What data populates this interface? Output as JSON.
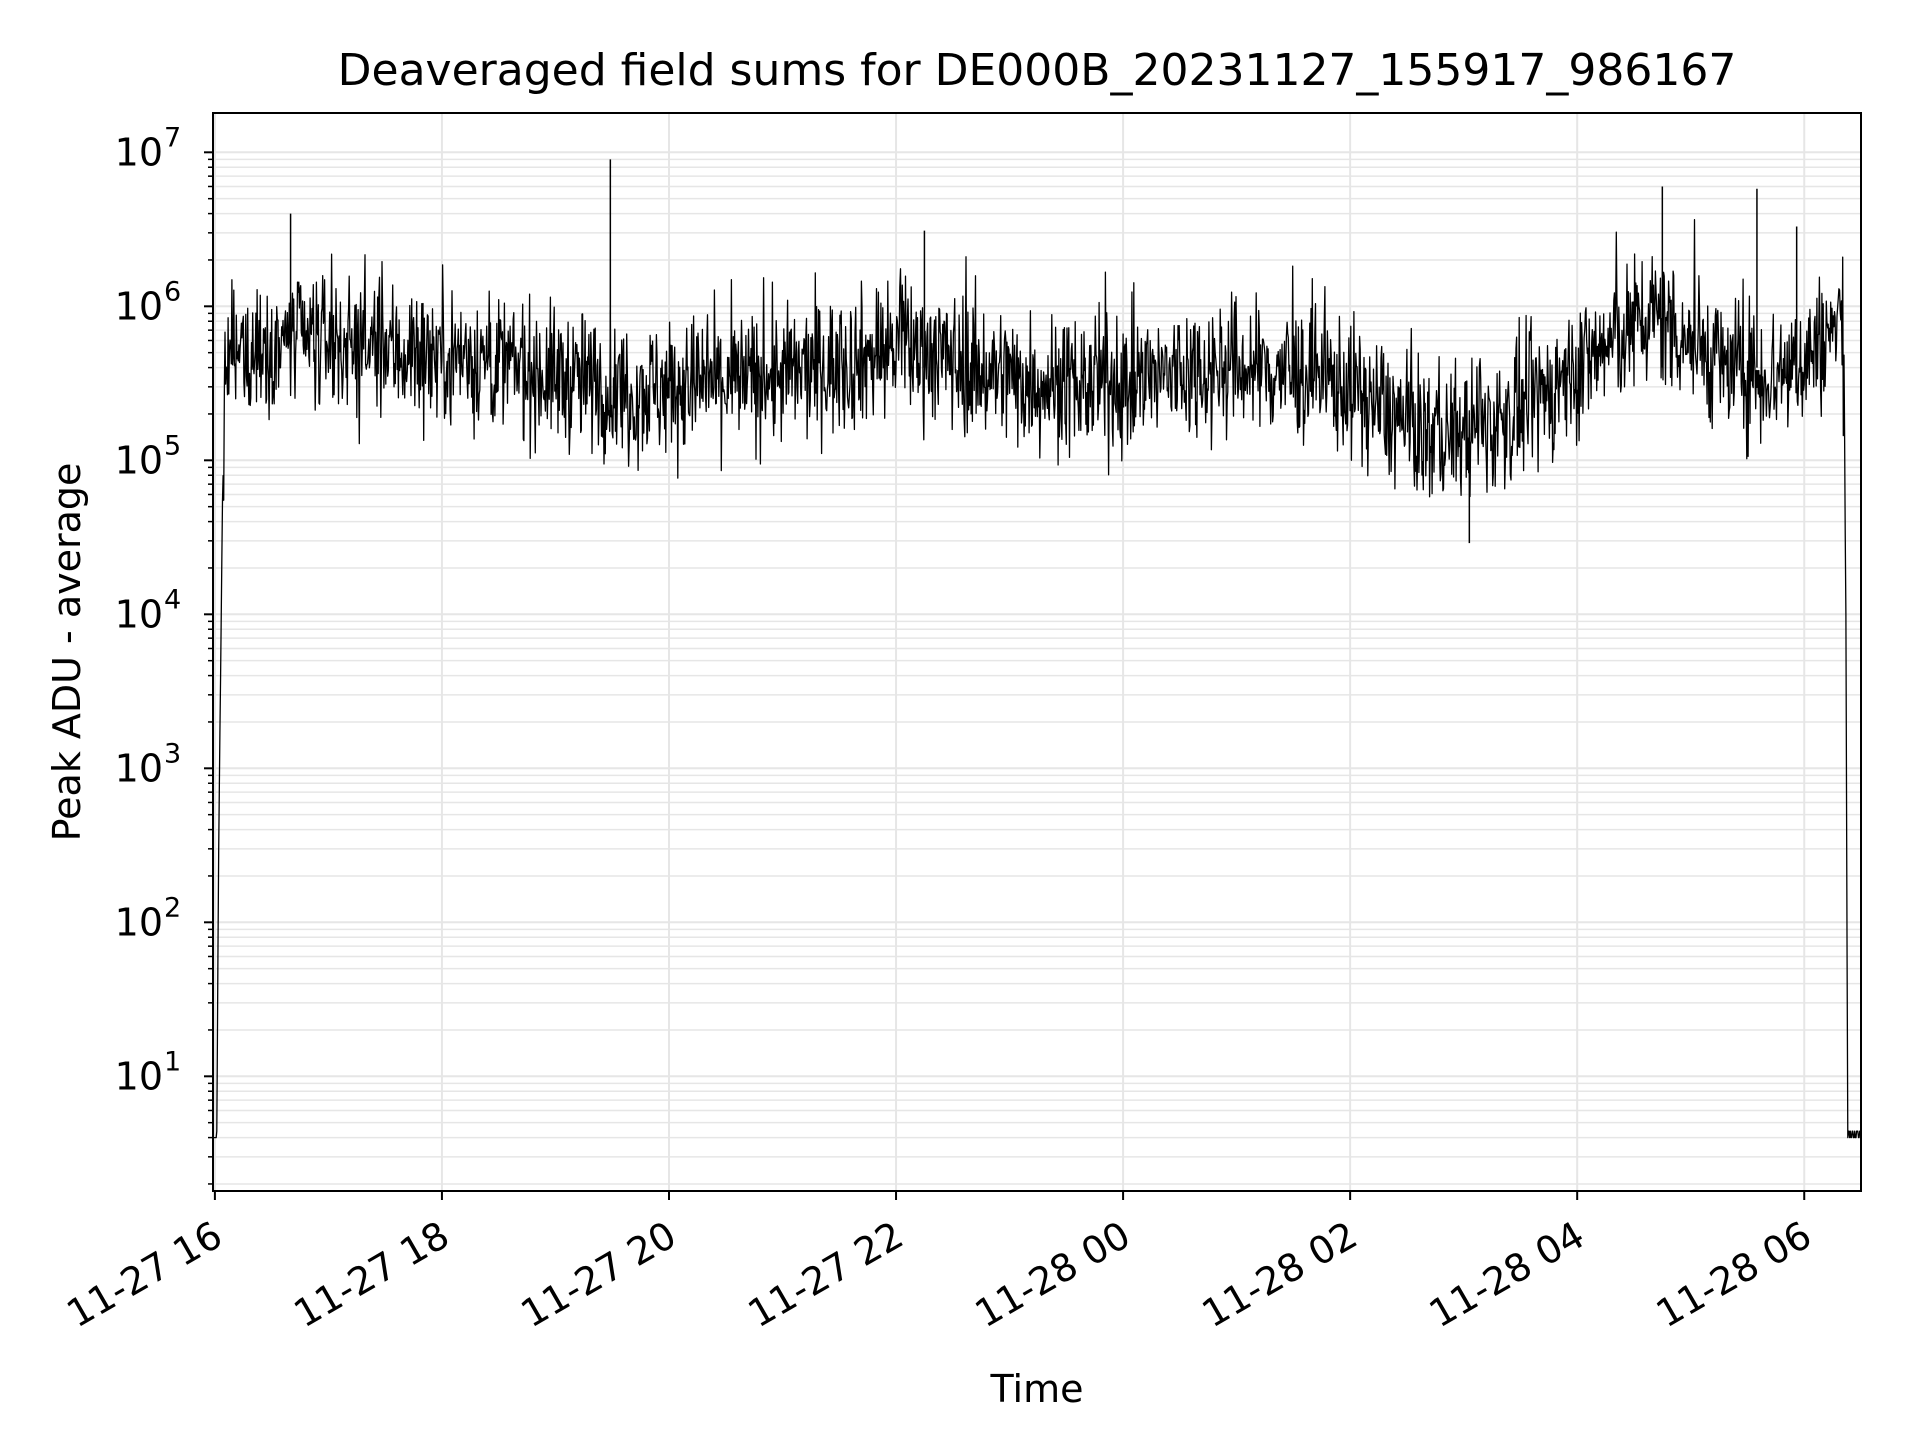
{
  "chart_data": {
    "type": "line",
    "title": "Deaveraged field sums for DE000B_20231127_155917_986167",
    "xlabel": "Time",
    "ylabel": "Peak ADU - average",
    "yscale": "log",
    "xlim": [
      "2023-11-27 15:59",
      "2023-11-28 06:30"
    ],
    "ylim": [
      1.8,
      18000000
    ],
    "grid": true,
    "line_color": "#000000",
    "grid_color": "#e6e6e6",
    "x_ticks": [
      {
        "t": "2023-11-27 16:00",
        "label": "11-27 16"
      },
      {
        "t": "2023-11-27 18:00",
        "label": "11-27 18"
      },
      {
        "t": "2023-11-27 20:00",
        "label": "11-27 20"
      },
      {
        "t": "2023-11-27 22:00",
        "label": "11-27 22"
      },
      {
        "t": "2023-11-28 00:00",
        "label": "11-28 00"
      },
      {
        "t": "2023-11-28 02:00",
        "label": "11-28 02"
      },
      {
        "t": "2023-11-28 04:00",
        "label": "11-28 04"
      },
      {
        "t": "2023-11-28 06:00",
        "label": "11-28 06"
      }
    ],
    "y_ticks": [
      {
        "value": 10,
        "base": "10",
        "exp": "1"
      },
      {
        "value": 100,
        "base": "10",
        "exp": "2"
      },
      {
        "value": 1000,
        "base": "10",
        "exp": "3"
      },
      {
        "value": 10000,
        "base": "10",
        "exp": "4"
      },
      {
        "value": 100000,
        "base": "10",
        "exp": "5"
      },
      {
        "value": 1000000,
        "base": "10",
        "exp": "6"
      },
      {
        "value": 10000000,
        "base": "10",
        "exp": "7"
      }
    ],
    "series": [
      {
        "x": [
          "2023-11-27 15:59",
          "2023-11-27 16:01",
          "2023-11-27 16:02",
          "2023-11-27 16:03",
          "2023-11-27 16:04",
          "2023-11-27 16:05",
          "2023-11-27 16:06",
          "2023-11-27 16:08",
          "2023-11-27 16:10",
          "2023-11-27 16:20",
          "2023-11-27 16:40",
          "2023-11-27 17:00",
          "2023-11-27 17:20",
          "2023-11-27 17:40",
          "2023-11-27 18:00",
          "2023-11-27 18:20",
          "2023-11-27 18:40",
          "2023-11-27 19:00",
          "2023-11-27 19:20",
          "2023-11-27 19:30",
          "2023-11-27 19:40",
          "2023-11-27 20:00",
          "2023-11-27 20:20",
          "2023-11-27 20:40",
          "2023-11-27 21:00",
          "2023-11-27 21:20",
          "2023-11-27 21:40",
          "2023-11-27 22:00",
          "2023-11-27 22:20",
          "2023-11-27 22:40",
          "2023-11-27 23:00",
          "2023-11-27 23:20",
          "2023-11-27 23:40",
          "2023-11-28 00:00",
          "2023-11-28 00:20",
          "2023-11-28 00:40",
          "2023-11-28 01:00",
          "2023-11-28 01:20",
          "2023-11-28 01:40",
          "2023-11-28 02:00",
          "2023-11-28 02:20",
          "2023-11-28 02:40",
          "2023-11-28 03:00",
          "2023-11-28 03:20",
          "2023-11-28 03:40",
          "2023-11-28 04:00",
          "2023-11-28 04:20",
          "2023-11-28 04:40",
          "2023-11-28 05:00",
          "2023-11-28 05:20",
          "2023-11-28 05:40",
          "2023-11-28 06:00",
          "2023-11-28 06:10",
          "2023-11-28 06:20",
          "2023-11-28 06:21",
          "2023-11-28 06:22",
          "2023-11-28 06:23",
          "2023-11-28 06:25",
          "2023-11-28 06:30"
        ],
        "y": [
          4,
          4,
          300,
          4000,
          50000,
          250000,
          400000,
          500000,
          500000,
          550000,
          600000,
          600000,
          550000,
          500000,
          500000,
          450000,
          400000,
          350000,
          320000,
          300000,
          280000,
          300000,
          320000,
          330000,
          350000,
          400000,
          450000,
          550000,
          500000,
          400000,
          350000,
          320000,
          300000,
          320000,
          350000,
          400000,
          400000,
          380000,
          350000,
          300000,
          200000,
          150000,
          150000,
          180000,
          250000,
          400000,
          600000,
          900000,
          600000,
          400000,
          350000,
          450000,
          600000,
          800000,
          500000,
          10000,
          4,
          4,
          4
        ]
      }
    ],
    "spikes": [
      {
        "x": "2023-11-27 16:40",
        "y": 4000000
      },
      {
        "x": "2023-11-27 19:29",
        "y": 9000000
      },
      {
        "x": "2023-11-27 22:15",
        "y": 3100000
      },
      {
        "x": "2023-11-28 04:45",
        "y": 6000000
      },
      {
        "x": "2023-11-28 05:35",
        "y": 5800000
      },
      {
        "x": "2023-11-28 05:56",
        "y": 3300000
      },
      {
        "x": "2023-11-28 03:03",
        "y": 29000
      }
    ]
  }
}
